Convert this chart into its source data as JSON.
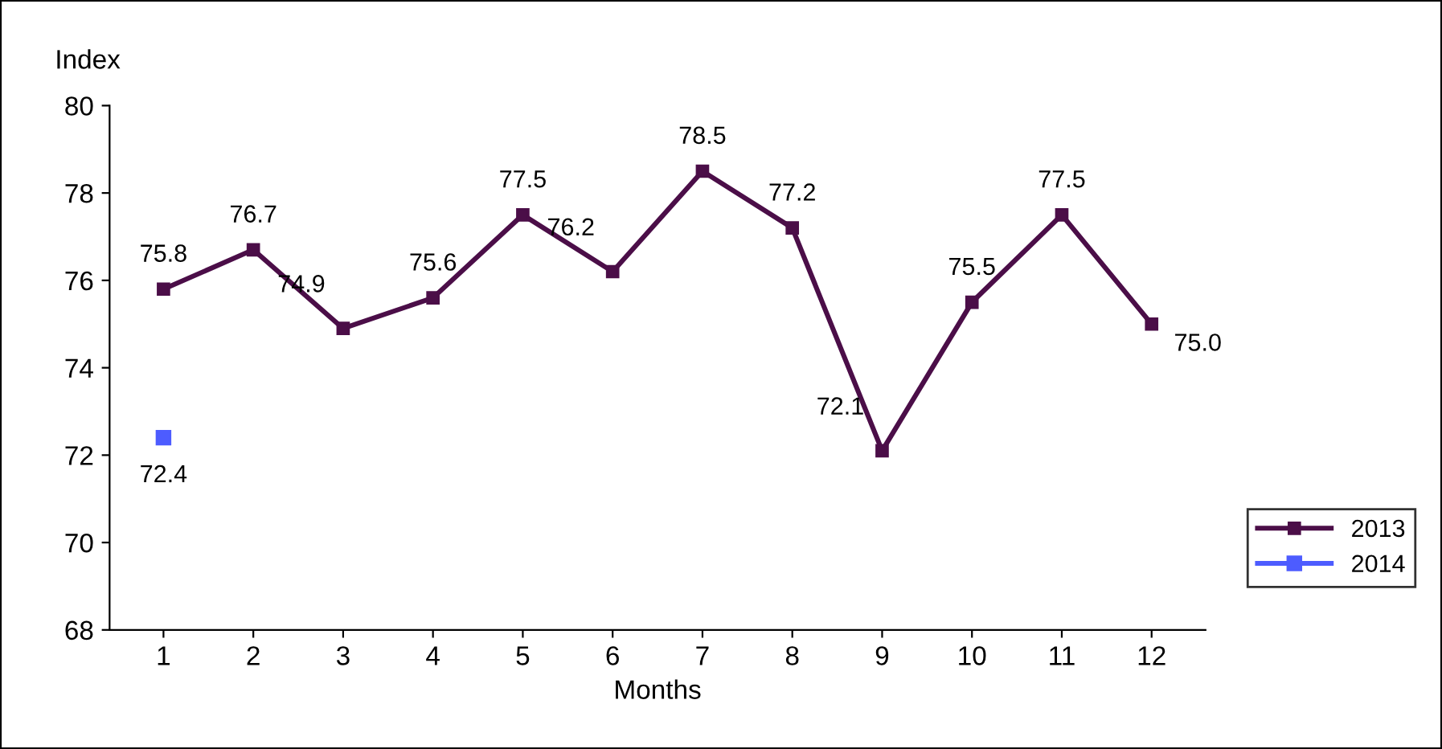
{
  "chart_data": {
    "type": "line",
    "ylabel": "Index",
    "xlabel": "Months",
    "categories": [
      "1",
      "2",
      "3",
      "4",
      "5",
      "6",
      "7",
      "8",
      "9",
      "10",
      "11",
      "12"
    ],
    "series": [
      {
        "name": "2013",
        "color": "#4b0e48",
        "values": [
          75.8,
          76.7,
          74.9,
          75.6,
          77.5,
          76.2,
          78.5,
          77.2,
          72.1,
          75.5,
          77.5,
          75.0
        ],
        "value_labels": [
          "75.8",
          "76.7",
          "74.9",
          "75.6",
          "77.5",
          "76.2",
          "78.5",
          "77.2",
          "72.1",
          "75.5",
          "77.5",
          "75.0"
        ]
      },
      {
        "name": "2014",
        "color": "#4d5cff",
        "values": [
          72.4,
          null,
          null,
          null,
          null,
          null,
          null,
          null,
          null,
          null,
          null,
          null
        ],
        "value_labels": [
          "72.4",
          null,
          null,
          null,
          null,
          null,
          null,
          null,
          null,
          null,
          null,
          null
        ]
      }
    ],
    "ylim": [
      68,
      80
    ],
    "yticks": [
      68,
      70,
      72,
      74,
      76,
      78,
      80
    ],
    "grid": false,
    "legend": "bottom right",
    "marker": "square",
    "line_style": "solid"
  }
}
